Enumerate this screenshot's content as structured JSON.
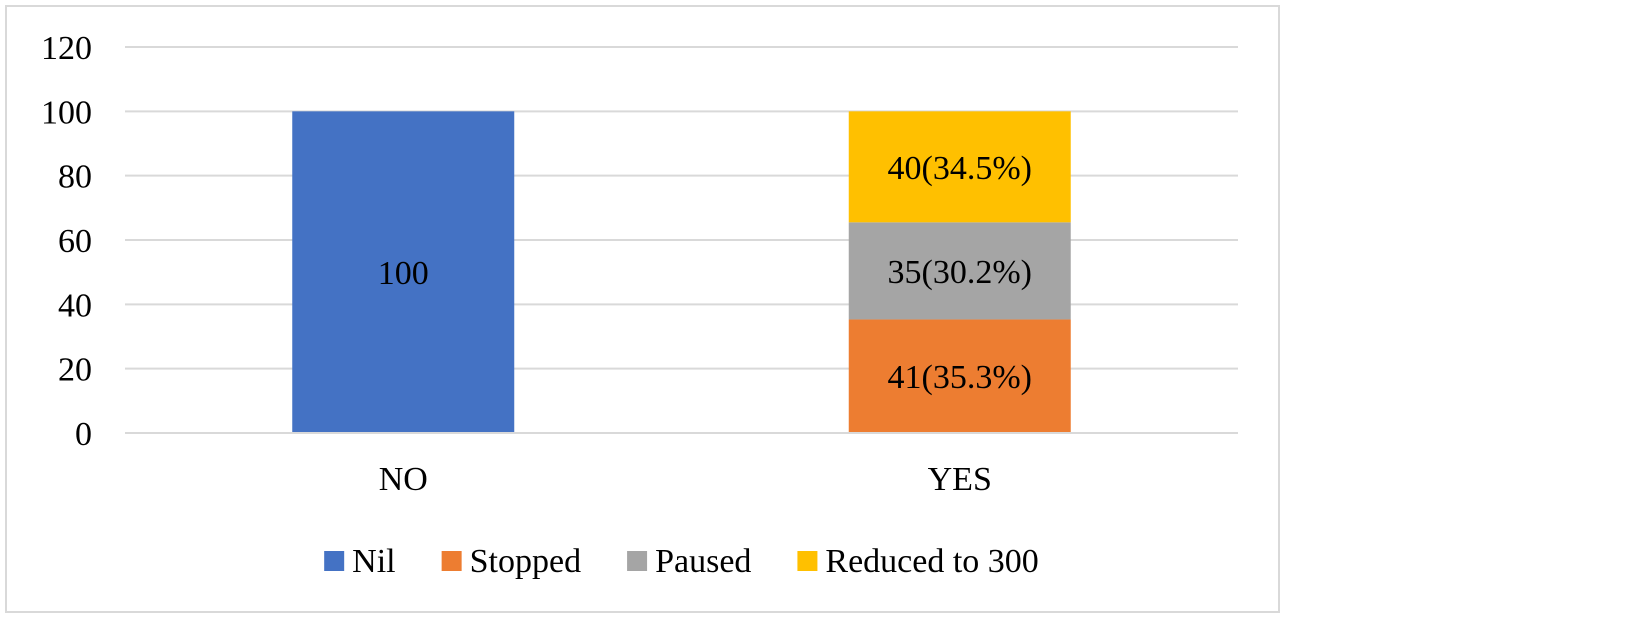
{
  "chart_data": {
    "type": "bar",
    "stacked": true,
    "categories": [
      "NO",
      "YES"
    ],
    "series": [
      {
        "name": "Nil",
        "color": "#4472C4",
        "values": [
          100,
          0
        ],
        "labels": [
          "100",
          ""
        ]
      },
      {
        "name": "Stopped",
        "color": "#ED7D31",
        "values": [
          0,
          35.3
        ],
        "labels": [
          "",
          "41(35.3%)"
        ]
      },
      {
        "name": "Paused",
        "color": "#A5A5A5",
        "values": [
          0,
          30.2
        ],
        "labels": [
          "",
          "35(30.2%)"
        ]
      },
      {
        "name": "Reduced to 300",
        "color": "#FFC000",
        "values": [
          0,
          34.5
        ],
        "labels": [
          "",
          "40(34.5%)"
        ]
      }
    ],
    "ylim": [
      0,
      120
    ],
    "yticks": [
      "0",
      "20",
      "40",
      "60",
      "80",
      "100",
      "120"
    ],
    "grid": true,
    "legend": "bottom",
    "title": "",
    "xlabel": "",
    "ylabel": ""
  }
}
